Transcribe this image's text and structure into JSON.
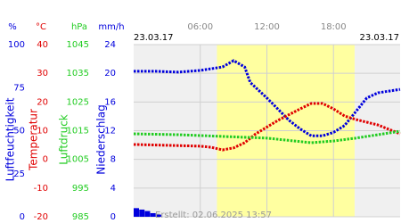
{
  "chart_data": {
    "type": "line",
    "start_date": "23.03.17",
    "end_date": "23.03.17",
    "created": "Erstellt: 02.06.2025 13:57",
    "xlim": [
      0,
      24
    ],
    "xticks": [
      {
        "value": 6,
        "label": "06:00"
      },
      {
        "value": 12,
        "label": "12:00"
      },
      {
        "value": 18,
        "label": "18:00"
      }
    ],
    "daylight": [
      7.5,
      19.9
    ],
    "axes": [
      {
        "unit": "%",
        "name": "Luftfeuchtigkeit",
        "color": "#0000dd",
        "style": "line",
        "ylim": [
          0,
          100
        ],
        "yticks": [
          0,
          25,
          50,
          75,
          100
        ],
        "x": [
          0,
          2,
          4,
          6,
          7,
          8,
          9,
          10,
          10.5,
          12,
          14,
          15,
          16,
          17,
          18,
          19,
          20,
          21,
          22,
          24
        ],
        "values": [
          84.5,
          84.5,
          84,
          85,
          86,
          87,
          90.7,
          87,
          78,
          69,
          56,
          51,
          47,
          47,
          49,
          53,
          61,
          69,
          72,
          74
        ]
      },
      {
        "unit": "°C",
        "name": "Temperatur",
        "color": "#e00000",
        "style": "line",
        "ylim": [
          -20,
          40
        ],
        "yticks": [
          -20,
          -10,
          0,
          10,
          20,
          30,
          40
        ],
        "x": [
          0,
          2,
          4,
          6,
          7,
          8,
          9,
          10,
          11,
          13,
          15,
          16,
          17,
          18,
          19,
          20,
          22,
          24
        ],
        "values": [
          5.2,
          5,
          4.8,
          4.6,
          4.2,
          3.3,
          4,
          5.8,
          8.9,
          13.6,
          17.6,
          19.5,
          19.5,
          17.6,
          15.1,
          13.9,
          12,
          8.9
        ]
      },
      {
        "unit": "hPa",
        "name": "Luftdruck",
        "color": "#22cc22",
        "style": "line",
        "ylim": [
          985,
          1045
        ],
        "yticks": [
          985,
          995,
          1005,
          1015,
          1025,
          1035,
          1045
        ],
        "x": [
          0,
          4,
          8,
          12,
          16,
          18,
          20,
          24
        ],
        "values": [
          1013.9,
          1013.6,
          1013,
          1012.4,
          1010.8,
          1011.4,
          1012.4,
          1014.8
        ]
      },
      {
        "unit": "mm/h",
        "name": "Niederschlag",
        "color": "#0000dd",
        "style": "bar",
        "ylim": [
          0,
          24
        ],
        "yticks": [
          0,
          4,
          8,
          12,
          16,
          20,
          24
        ],
        "x": [
          0,
          0.5,
          1,
          1.5,
          2
        ],
        "values": [
          1.2,
          1,
          0.8,
          0.5,
          0.3
        ]
      }
    ]
  }
}
